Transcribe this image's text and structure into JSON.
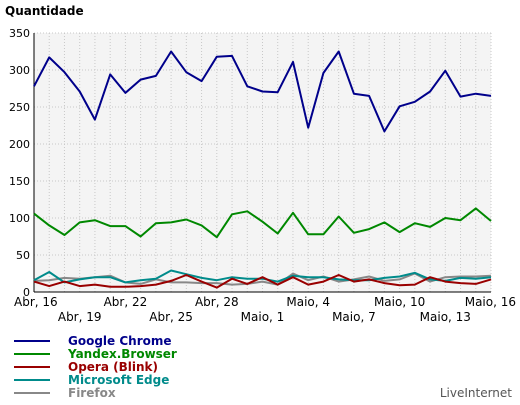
{
  "chart_data": {
    "type": "line",
    "ylabel": "Quantidade",
    "ylim": [
      0,
      350
    ],
    "yticks": [
      0,
      50,
      100,
      150,
      200,
      250,
      300,
      350
    ],
    "grid": true,
    "legend_position": "bottom-left",
    "x_tick_labels_row1": [
      "Abr, 16",
      "Abr, 22",
      "Abr, 28",
      "Maio, 4",
      "Maio, 10",
      "Maio, 16"
    ],
    "x_tick_labels_row2": [
      "Abr, 19",
      "Abr, 25",
      "Maio, 1",
      "Maio, 7",
      "Maio, 13"
    ],
    "x": [
      "Abr, 16",
      "Abr, 17",
      "Abr, 18",
      "Abr, 19",
      "Abr, 20",
      "Abr, 21",
      "Abr, 22",
      "Abr, 23",
      "Abr, 24",
      "Abr, 25",
      "Abr, 26",
      "Abr, 27",
      "Abr, 28",
      "Abr, 29",
      "Abr, 30",
      "Maio, 1",
      "Maio, 2",
      "Maio, 3",
      "Maio, 4",
      "Maio, 5",
      "Maio, 6",
      "Maio, 7",
      "Maio, 8",
      "Maio, 9",
      "Maio, 10",
      "Maio, 11",
      "Maio, 12",
      "Maio, 13",
      "Maio, 14",
      "Maio, 15",
      "Maio, 16"
    ],
    "series": [
      {
        "name": "Google Chrome",
        "color": "#00008b",
        "values": [
          278,
          317,
          297,
          271,
          233,
          294,
          269,
          287,
          292,
          325,
          297,
          285,
          318,
          319,
          278,
          271,
          270,
          311,
          222,
          296,
          325,
          268,
          265,
          217,
          251,
          257,
          271,
          299,
          264,
          268,
          265
        ]
      },
      {
        "name": "Yandex.Browser",
        "color": "#008800",
        "values": [
          106,
          90,
          77,
          94,
          97,
          89,
          89,
          75,
          93,
          94,
          98,
          90,
          74,
          105,
          109,
          95,
          79,
          107,
          78,
          78,
          102,
          80,
          85,
          94,
          81,
          93,
          88,
          100,
          97,
          113,
          96
        ]
      },
      {
        "name": "Opera (Blink)",
        "color": "#990000",
        "values": [
          14,
          8,
          14,
          8,
          10,
          7,
          7,
          8,
          10,
          15,
          23,
          14,
          6,
          18,
          11,
          20,
          10,
          20,
          10,
          14,
          23,
          14,
          17,
          12,
          9,
          10,
          20,
          14,
          12,
          11,
          17
        ]
      },
      {
        "name": "Microsoft Edge",
        "color": "#008b8b",
        "values": [
          16,
          27,
          13,
          17,
          20,
          20,
          13,
          16,
          18,
          29,
          24,
          19,
          16,
          20,
          18,
          18,
          14,
          22,
          20,
          20,
          17,
          16,
          16,
          19,
          21,
          26,
          17,
          15,
          19,
          18,
          20
        ]
      },
      {
        "name": "Firefox",
        "color": "#888888",
        "values": [
          15,
          16,
          19,
          18,
          20,
          22,
          13,
          11,
          17,
          13,
          13,
          12,
          12,
          10,
          11,
          14,
          10,
          25,
          16,
          21,
          14,
          17,
          21,
          15,
          17,
          25,
          14,
          20,
          21,
          21,
          22
        ]
      }
    ]
  },
  "brand": "LiveInternet"
}
